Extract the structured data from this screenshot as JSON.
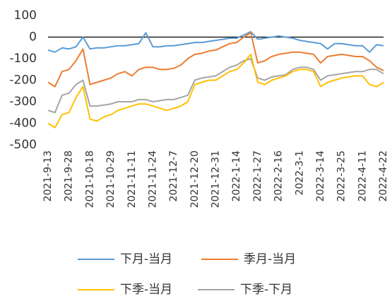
{
  "chart_data": {
    "type": "line",
    "categories": [
      "2021-9-13",
      null,
      null,
      "2021-9-28",
      null,
      null,
      "2021-10-18",
      null,
      null,
      "2021-10-29",
      null,
      null,
      "2021-11-11",
      null,
      null,
      "2021-11-24",
      null,
      null,
      "2021-12-7",
      null,
      null,
      "2021-12-20",
      null,
      null,
      "2021-12-31",
      null,
      null,
      "2022-1-14",
      null,
      null,
      "2022-1-27",
      null,
      null,
      "2022-2-16",
      null,
      null,
      "2022-3-1",
      null,
      null,
      "2022-3-14",
      null,
      null,
      "2022-3-25",
      null,
      null,
      "2022-4-11",
      null,
      null,
      "2022-4-22"
    ],
    "series": [
      {
        "name": "下月-当月",
        "color": "#5b9bd5",
        "values": [
          -60,
          -70,
          -50,
          -55,
          -45,
          0,
          -55,
          -50,
          -50,
          -45,
          -40,
          -40,
          -35,
          -30,
          20,
          -45,
          -45,
          -40,
          -40,
          -35,
          -30,
          -25,
          -25,
          -20,
          -15,
          -10,
          -5,
          -5,
          10,
          25,
          -10,
          -5,
          0,
          5,
          0,
          -5,
          -15,
          -20,
          -25,
          -30,
          -55,
          -30,
          -30,
          -35,
          -40,
          -40,
          -70,
          -35,
          -40
        ]
      },
      {
        "name": "季月-当月",
        "color": "#ed7d31",
        "values": [
          -210,
          -230,
          -160,
          -150,
          -110,
          -55,
          -220,
          -210,
          -200,
          -190,
          -170,
          -160,
          -180,
          -150,
          -140,
          -140,
          -150,
          -150,
          -145,
          -130,
          -100,
          -80,
          -75,
          -65,
          -60,
          -45,
          -30,
          -25,
          0,
          20,
          -120,
          -110,
          -90,
          -80,
          -75,
          -70,
          -70,
          -75,
          -80,
          -120,
          -90,
          -85,
          -80,
          -85,
          -90,
          -90,
          -110,
          -140,
          -155
        ]
      },
      {
        "name": "下季-当月",
        "color": "#ffc000",
        "values": [
          -400,
          -420,
          -360,
          -350,
          -280,
          -230,
          -380,
          -390,
          -370,
          -360,
          -340,
          -330,
          -320,
          -310,
          -310,
          -320,
          -330,
          -340,
          -330,
          -320,
          -300,
          -220,
          -210,
          -200,
          -200,
          -180,
          -160,
          -150,
          -120,
          -80,
          -210,
          -220,
          -200,
          -190,
          -180,
          -160,
          -150,
          -150,
          -160,
          -230,
          -210,
          -200,
          -190,
          -185,
          -180,
          -180,
          -220,
          -230,
          -210
        ]
      },
      {
        "name": "下季-下月",
        "color": "#a5a5a5",
        "values": [
          -340,
          -350,
          -270,
          -260,
          -220,
          -200,
          -320,
          -320,
          -315,
          -310,
          -300,
          -300,
          -300,
          -290,
          -290,
          -300,
          -295,
          -290,
          -290,
          -280,
          -270,
          -200,
          -190,
          -185,
          -180,
          -160,
          -140,
          -130,
          -110,
          -100,
          -190,
          -200,
          -185,
          -180,
          -175,
          -150,
          -140,
          -140,
          -150,
          -200,
          -180,
          -175,
          -170,
          -165,
          -160,
          -160,
          -150,
          -150,
          -170
        ]
      }
    ],
    "ylim": [
      -500,
      100
    ],
    "yticks": [
      100,
      0,
      -100,
      -200,
      -300,
      -400,
      -500
    ],
    "grid": false
  }
}
